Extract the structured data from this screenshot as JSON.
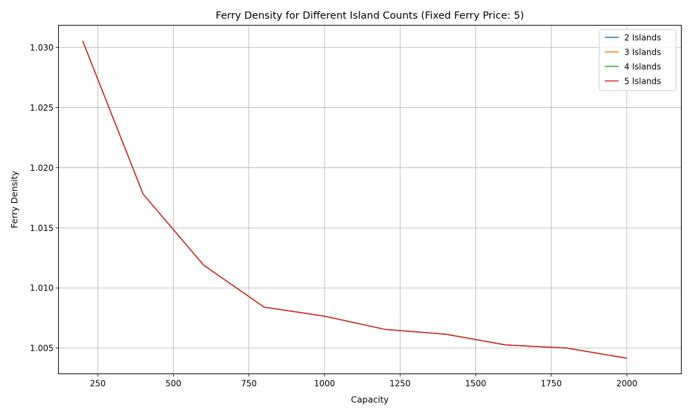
{
  "chart_data": {
    "type": "line",
    "title": "Ferry Density for Different Island Counts (Fixed Ferry Price: 5)",
    "xlabel": "Capacity",
    "ylabel": "Ferry Density",
    "xlim": [
      120,
      2180
    ],
    "ylim": [
      1.00285,
      1.03185
    ],
    "xticks": [
      250,
      500,
      750,
      1000,
      1250,
      1500,
      1750,
      2000
    ],
    "xtick_labels": [
      "250",
      "500",
      "750",
      "1000",
      "1250",
      "1500",
      "1750",
      "2000"
    ],
    "yticks": [
      1.005,
      1.01,
      1.015,
      1.02,
      1.025,
      1.03
    ],
    "ytick_labels": [
      "1.005",
      "1.010",
      "1.015",
      "1.020",
      "1.025",
      "1.030"
    ],
    "grid": true,
    "legend_position": "top-right",
    "x": [
      200,
      400,
      600,
      800,
      1000,
      1200,
      1400,
      1600,
      1800,
      2000
    ],
    "series": [
      {
        "name": "2 Islands",
        "color": "#1f77b4",
        "values": [
          1.03055,
          1.0178,
          1.0119,
          1.0084,
          1.00765,
          1.00655,
          1.00615,
          1.00525,
          1.005,
          1.00415
        ]
      },
      {
        "name": "3 Islands",
        "color": "#ff7f0e",
        "values": [
          1.03055,
          1.0178,
          1.0119,
          1.0084,
          1.00765,
          1.00655,
          1.00615,
          1.00525,
          1.005,
          1.00415
        ]
      },
      {
        "name": "4 Islands",
        "color": "#2ca02c",
        "values": [
          1.03055,
          1.0178,
          1.0119,
          1.0084,
          1.00765,
          1.00655,
          1.00615,
          1.00525,
          1.005,
          1.00415
        ]
      },
      {
        "name": "5 Islands",
        "color": "#d62728",
        "values": [
          1.03055,
          1.0178,
          1.0119,
          1.0084,
          1.00765,
          1.00655,
          1.00615,
          1.00525,
          1.005,
          1.00415
        ]
      }
    ]
  }
}
